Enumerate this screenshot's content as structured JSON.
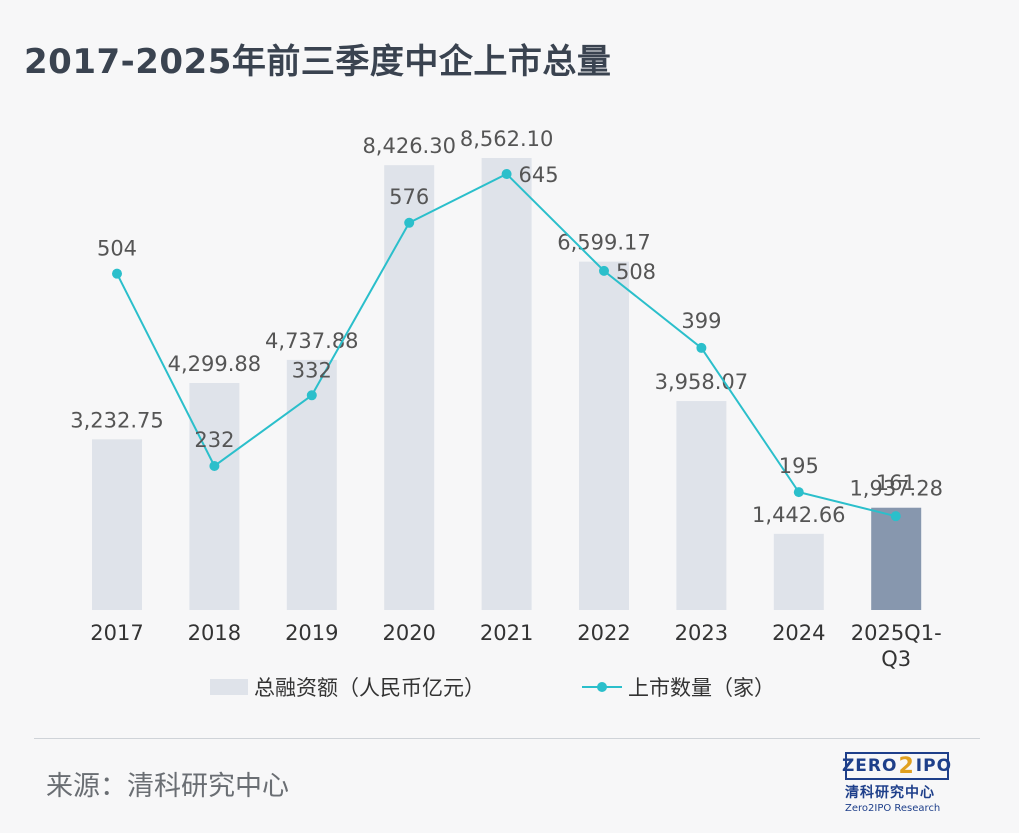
{
  "title": "2017-2025年前三季度中企上市总量",
  "source": "来源：清科研究中心",
  "logo": {
    "top": "ZERO",
    "two": "2",
    "ipo": "IPO",
    "cn": "清科研究中心",
    "en": "Zero2IPO Research"
  },
  "colors": {
    "bar": "#dfe3ea",
    "bar_highlight": "#8797ae",
    "line": "#2bbfcb",
    "label": "#555555",
    "axis_text": "#333333"
  },
  "chart_data": {
    "type": "bar",
    "categories": [
      "2017",
      "2018",
      "2019",
      "2020",
      "2021",
      "2022",
      "2023",
      "2024",
      "2025Q1-Q3"
    ],
    "category_lines": [
      [
        "2017"
      ],
      [
        "2018"
      ],
      [
        "2019"
      ],
      [
        "2020"
      ],
      [
        "2021"
      ],
      [
        "2022"
      ],
      [
        "2023"
      ],
      [
        "2024"
      ],
      [
        "2025Q1-",
        "Q3"
      ]
    ],
    "series": [
      {
        "name": "总融资额（人民币亿元）",
        "type": "bar",
        "values": [
          3232.75,
          4299.88,
          4737.88,
          8426.3,
          8562.1,
          6599.17,
          3958.07,
          1442.66,
          1937.28
        ],
        "labels": [
          "3,232.75",
          "4,299.88",
          "4,737.88",
          "8,426.30",
          "8,562.10",
          "6,599.17",
          "3,958.07",
          "1,442.66",
          "1,937.28"
        ],
        "highlight_index": 8
      },
      {
        "name": "上市数量（家）",
        "type": "line",
        "values": [
          504,
          232,
          332,
          576,
          645,
          508,
          399,
          195,
          161
        ],
        "labels": [
          "504",
          "232",
          "332",
          "576",
          "645",
          "508",
          "399",
          "195",
          "161"
        ]
      }
    ],
    "bar_ylim": [
      0,
      8562.1
    ],
    "line_ylim": [
      0,
      850
    ],
    "legend_position": "bottom",
    "grid": false
  }
}
